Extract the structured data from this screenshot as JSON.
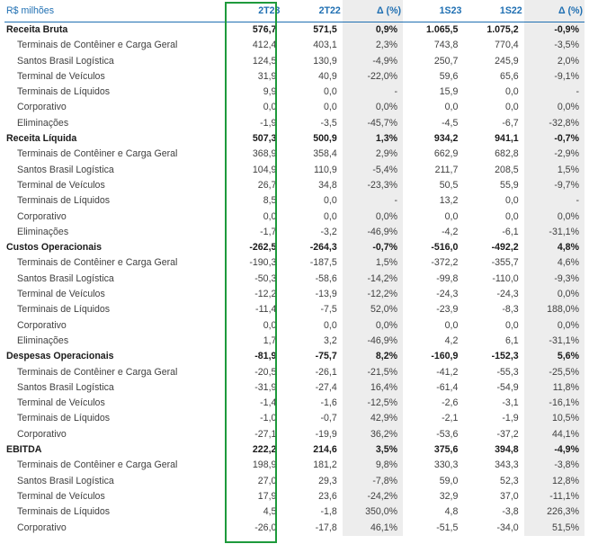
{
  "header": [
    "R$ milhões",
    "2T23",
    "2T22",
    "Δ (%)",
    "1S23",
    "1S22",
    "Δ (%)"
  ],
  "rows": [
    {
      "type": "main",
      "label": "Receita Bruta",
      "v": [
        "576,7",
        "571,5",
        "0,9%",
        "1.065,5",
        "1.075,2",
        "-0,9%"
      ]
    },
    {
      "type": "sub",
      "label": "Terminais de Contêiner e Carga Geral",
      "v": [
        "412,4",
        "403,1",
        "2,3%",
        "743,8",
        "770,4",
        "-3,5%"
      ]
    },
    {
      "type": "sub",
      "label": "Santos Brasil Logística",
      "v": [
        "124,5",
        "130,9",
        "-4,9%",
        "250,7",
        "245,9",
        "2,0%"
      ]
    },
    {
      "type": "sub",
      "label": "Terminal de Veículos",
      "v": [
        "31,9",
        "40,9",
        "-22,0%",
        "59,6",
        "65,6",
        "-9,1%"
      ]
    },
    {
      "type": "sub",
      "label": "Terminais de Líquidos",
      "v": [
        "9,9",
        "0,0",
        "-",
        "15,9",
        "0,0",
        "-"
      ]
    },
    {
      "type": "sub",
      "label": "Corporativo",
      "v": [
        "0,0",
        "0,0",
        "0,0%",
        "0,0",
        "0,0",
        "0,0%"
      ]
    },
    {
      "type": "sub",
      "label": "Eliminações",
      "v": [
        "-1,9",
        "-3,5",
        "-45,7%",
        "-4,5",
        "-6,7",
        "-32,8%"
      ]
    },
    {
      "type": "main",
      "label": "Receita Líquida",
      "v": [
        "507,3",
        "500,9",
        "1,3%",
        "934,2",
        "941,1",
        "-0,7%"
      ]
    },
    {
      "type": "sub",
      "label": "Terminais de Contêiner e Carga Geral",
      "v": [
        "368,9",
        "358,4",
        "2,9%",
        "662,9",
        "682,8",
        "-2,9%"
      ]
    },
    {
      "type": "sub",
      "label": "Santos Brasil Logística",
      "v": [
        "104,9",
        "110,9",
        "-5,4%",
        "211,7",
        "208,5",
        "1,5%"
      ]
    },
    {
      "type": "sub",
      "label": "Terminal de Veículos",
      "v": [
        "26,7",
        "34,8",
        "-23,3%",
        "50,5",
        "55,9",
        "-9,7%"
      ]
    },
    {
      "type": "sub",
      "label": "Terminais de Líquidos",
      "v": [
        "8,5",
        "0,0",
        "-",
        "13,2",
        "0,0",
        "-"
      ]
    },
    {
      "type": "sub",
      "label": "Corporativo",
      "v": [
        "0,0",
        "0,0",
        "0,0%",
        "0,0",
        "0,0",
        "0,0%"
      ]
    },
    {
      "type": "sub",
      "label": "Eliminações",
      "v": [
        "-1,7",
        "-3,2",
        "-46,9%",
        "-4,2",
        "-6,1",
        "-31,1%"
      ]
    },
    {
      "type": "main",
      "label": "Custos Operacionais",
      "v": [
        "-262,5",
        "-264,3",
        "-0,7%",
        "-516,0",
        "-492,2",
        "4,8%"
      ]
    },
    {
      "type": "sub",
      "label": "Terminais de Contêiner e Carga Geral",
      "v": [
        "-190,3",
        "-187,5",
        "1,5%",
        "-372,2",
        "-355,7",
        "4,6%"
      ]
    },
    {
      "type": "sub",
      "label": "Santos Brasil Logística",
      "v": [
        "-50,3",
        "-58,6",
        "-14,2%",
        "-99,8",
        "-110,0",
        "-9,3%"
      ]
    },
    {
      "type": "sub",
      "label": "Terminal de Veículos",
      "v": [
        "-12,2",
        "-13,9",
        "-12,2%",
        "-24,3",
        "-24,3",
        "0,0%"
      ]
    },
    {
      "type": "sub",
      "label": "Terminais de Líquidos",
      "v": [
        "-11,4",
        "-7,5",
        "52,0%",
        "-23,9",
        "-8,3",
        "188,0%"
      ]
    },
    {
      "type": "sub",
      "label": "Corporativo",
      "v": [
        "0,0",
        "0,0",
        "0,0%",
        "0,0",
        "0,0",
        "0,0%"
      ]
    },
    {
      "type": "sub",
      "label": "Eliminações",
      "v": [
        "1,7",
        "3,2",
        "-46,9%",
        "4,2",
        "6,1",
        "-31,1%"
      ]
    },
    {
      "type": "main",
      "label": "Despesas Operacionais",
      "v": [
        "-81,9",
        "-75,7",
        "8,2%",
        "-160,9",
        "-152,3",
        "5,6%"
      ]
    },
    {
      "type": "sub",
      "label": "Terminais de Contêiner e Carga Geral",
      "v": [
        "-20,5",
        "-26,1",
        "-21,5%",
        "-41,2",
        "-55,3",
        "-25,5%"
      ]
    },
    {
      "type": "sub",
      "label": "Santos Brasil Logística",
      "v": [
        "-31,9",
        "-27,4",
        "16,4%",
        "-61,4",
        "-54,9",
        "11,8%"
      ]
    },
    {
      "type": "sub",
      "label": "Terminal de Veículos",
      "v": [
        "-1,4",
        "-1,6",
        "-12,5%",
        "-2,6",
        "-3,1",
        "-16,1%"
      ]
    },
    {
      "type": "sub",
      "label": "Terminais de Líquidos",
      "v": [
        "-1,0",
        "-0,7",
        "42,9%",
        "-2,1",
        "-1,9",
        "10,5%"
      ]
    },
    {
      "type": "sub",
      "label": "Corporativo",
      "v": [
        "-27,1",
        "-19,9",
        "36,2%",
        "-53,6",
        "-37,2",
        "44,1%"
      ]
    },
    {
      "type": "main",
      "label": "EBITDA",
      "v": [
        "222,2",
        "214,6",
        "3,5%",
        "375,6",
        "394,8",
        "-4,9%"
      ]
    },
    {
      "type": "sub",
      "label": "Terminais de Contêiner e Carga Geral",
      "v": [
        "198,9",
        "181,2",
        "9,8%",
        "330,3",
        "343,3",
        "-3,8%"
      ]
    },
    {
      "type": "sub",
      "label": "Santos Brasil Logística",
      "v": [
        "27,0",
        "29,3",
        "-7,8%",
        "59,0",
        "52,3",
        "12,8%"
      ]
    },
    {
      "type": "sub",
      "label": "Terminal de Veículos",
      "v": [
        "17,9",
        "23,6",
        "-24,2%",
        "32,9",
        "37,0",
        "-11,1%"
      ]
    },
    {
      "type": "sub",
      "label": "Terminais de Líquidos",
      "v": [
        "4,5",
        "-1,8",
        "350,0%",
        "4,8",
        "-3,8",
        "226,3%"
      ]
    },
    {
      "type": "sub",
      "label": "Corporativo",
      "v": [
        "-26,0",
        "-17,8",
        "46,1%",
        "-51,5",
        "-34,0",
        "51,5%"
      ]
    }
  ]
}
